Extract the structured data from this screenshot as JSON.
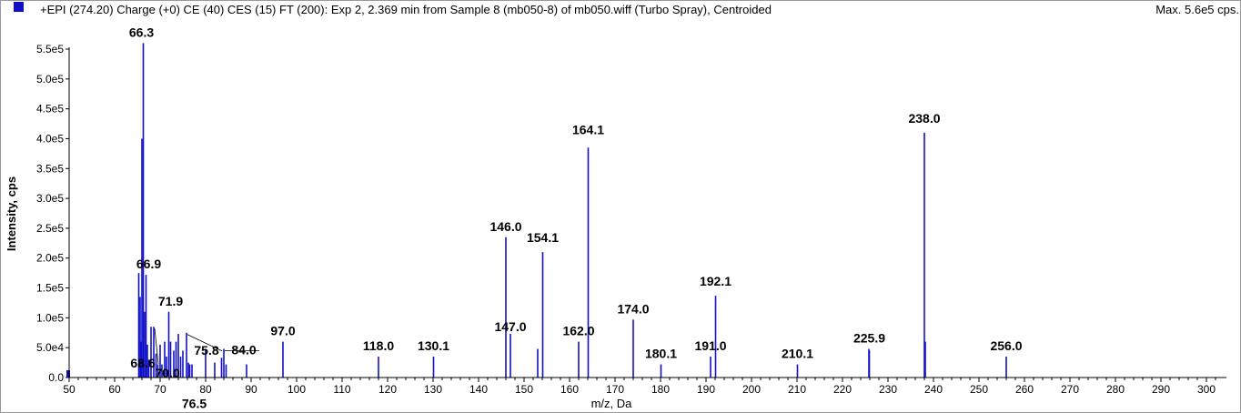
{
  "header": {
    "title": "+EPI (274.20) Charge (+0) CE (40) CES (15) FT (200): Exp 2, 2.369 min from Sample 8 (mb050-8) of mb050.wiff (Turbo Spray), Centroided",
    "max": "Max. 5.6e5 cps."
  },
  "colors": {
    "series": "#1010c8",
    "legend_swatch": "#1010c8"
  },
  "chart_data": {
    "type": "bar",
    "title": "+EPI (274.20) Charge (+0) CE (40) CES (15) FT (200): Exp 2, 2.369 min from Sample 8 (mb050-8) of mb050.wiff (Turbo Spray), Centroided",
    "xlabel": "m/z, Da",
    "ylabel": "Intensity, cps",
    "xlim": [
      50,
      304
    ],
    "ylim": [
      0,
      575000
    ],
    "xticks": [
      50,
      60,
      70,
      80,
      90,
      100,
      110,
      120,
      130,
      140,
      150,
      160,
      170,
      180,
      190,
      200,
      210,
      220,
      230,
      240,
      250,
      260,
      270,
      280,
      290,
      300
    ],
    "xtick_labels": [
      "50",
      "60",
      "70",
      "80",
      "90",
      "100",
      "110",
      "120",
      "130",
      "140",
      "150",
      "160",
      "170",
      "180",
      "190",
      "200",
      "210",
      "220",
      "230",
      "240",
      "250",
      "260",
      "270",
      "280",
      "290",
      "300"
    ],
    "yticks": [
      0,
      50000,
      100000,
      150000,
      200000,
      250000,
      300000,
      350000,
      400000,
      450000,
      500000,
      550000
    ],
    "ytick_labels": [
      "0.0",
      "5.0e4",
      "1.0e5",
      "1.5e5",
      "2.0e5",
      "2.5e5",
      "3.0e5",
      "3.5e5",
      "4.0e5",
      "4.5e5",
      "5.0e5",
      "5.5e5"
    ],
    "peaks": [
      {
        "mz": 50.0,
        "intensity": 12000
      },
      {
        "mz": 65.3,
        "intensity": 175000
      },
      {
        "mz": 65.6,
        "intensity": 135000
      },
      {
        "mz": 65.8,
        "intensity": 60000
      },
      {
        "mz": 66.0,
        "intensity": 400000
      },
      {
        "mz": 66.3,
        "intensity": 560000
      },
      {
        "mz": 66.6,
        "intensity": 110000
      },
      {
        "mz": 66.9,
        "intensity": 172000
      },
      {
        "mz": 67.2,
        "intensity": 55000
      },
      {
        "mz": 67.5,
        "intensity": 30000
      },
      {
        "mz": 68.0,
        "intensity": 85000
      },
      {
        "mz": 68.6,
        "intensity": 85000
      },
      {
        "mz": 69.1,
        "intensity": 40000
      },
      {
        "mz": 69.5,
        "intensity": 22000
      },
      {
        "mz": 70.0,
        "intensity": 55000
      },
      {
        "mz": 70.4,
        "intensity": 22000
      },
      {
        "mz": 71.0,
        "intensity": 60000
      },
      {
        "mz": 71.4,
        "intensity": 35000
      },
      {
        "mz": 71.9,
        "intensity": 110000
      },
      {
        "mz": 72.3,
        "intensity": 60000
      },
      {
        "mz": 73.0,
        "intensity": 45000
      },
      {
        "mz": 73.5,
        "intensity": 60000
      },
      {
        "mz": 74.0,
        "intensity": 73000
      },
      {
        "mz": 74.5,
        "intensity": 35000
      },
      {
        "mz": 75.0,
        "intensity": 45000
      },
      {
        "mz": 75.8,
        "intensity": 75000
      },
      {
        "mz": 76.2,
        "intensity": 25000
      },
      {
        "mz": 76.5,
        "intensity": 22000
      },
      {
        "mz": 77.0,
        "intensity": 22000
      },
      {
        "mz": 80.0,
        "intensity": 48000
      },
      {
        "mz": 82.0,
        "intensity": 25000
      },
      {
        "mz": 83.5,
        "intensity": 33000
      },
      {
        "mz": 84.0,
        "intensity": 48000
      },
      {
        "mz": 84.5,
        "intensity": 22000
      },
      {
        "mz": 89.0,
        "intensity": 22000
      },
      {
        "mz": 97.0,
        "intensity": 60000
      },
      {
        "mz": 118.0,
        "intensity": 35000
      },
      {
        "mz": 130.1,
        "intensity": 35000
      },
      {
        "mz": 146.0,
        "intensity": 235000
      },
      {
        "mz": 147.0,
        "intensity": 73000
      },
      {
        "mz": 153.0,
        "intensity": 48000
      },
      {
        "mz": 154.1,
        "intensity": 210000
      },
      {
        "mz": 162.0,
        "intensity": 60000
      },
      {
        "mz": 164.1,
        "intensity": 385000
      },
      {
        "mz": 174.0,
        "intensity": 97000
      },
      {
        "mz": 180.1,
        "intensity": 22000
      },
      {
        "mz": 191.0,
        "intensity": 35000
      },
      {
        "mz": 192.1,
        "intensity": 137000
      },
      {
        "mz": 210.1,
        "intensity": 22000
      },
      {
        "mz": 225.8,
        "intensity": 48000
      },
      {
        "mz": 225.9,
        "intensity": 45000
      },
      {
        "mz": 238.0,
        "intensity": 410000
      },
      {
        "mz": 238.2,
        "intensity": 60000
      },
      {
        "mz": 256.0,
        "intensity": 35000
      }
    ],
    "annotations": [
      {
        "text": "66.3",
        "mz": 66.3,
        "intensity": 560000
      },
      {
        "text": "66.9",
        "mz": 66.9,
        "intensity": 172000
      },
      {
        "text": "68.6",
        "mz": 68.6,
        "intensity": 85000,
        "leader": true
      },
      {
        "text": "70.0",
        "mz": 70.0,
        "intensity": 55000
      },
      {
        "text": "71.9",
        "mz": 71.9,
        "intensity": 110000
      },
      {
        "text": "75.8",
        "mz": 75.8,
        "intensity": 75000,
        "leader": true
      },
      {
        "text": "76.5",
        "mz": 76.5,
        "intensity": 22000
      },
      {
        "text": "84.0",
        "mz": 84.0,
        "intensity": 48000,
        "leader": true
      },
      {
        "text": "97.0",
        "mz": 97.0,
        "intensity": 60000
      },
      {
        "text": "118.0",
        "mz": 118.0,
        "intensity": 35000
      },
      {
        "text": "130.1",
        "mz": 130.1,
        "intensity": 35000
      },
      {
        "text": "146.0",
        "mz": 146.0,
        "intensity": 235000
      },
      {
        "text": "147.0",
        "mz": 147.0,
        "intensity": 73000
      },
      {
        "text": "154.1",
        "mz": 154.1,
        "intensity": 210000
      },
      {
        "text": "162.0",
        "mz": 162.0,
        "intensity": 60000
      },
      {
        "text": "164.1",
        "mz": 164.1,
        "intensity": 385000
      },
      {
        "text": "174.0",
        "mz": 174.0,
        "intensity": 97000
      },
      {
        "text": "180.1",
        "mz": 180.1,
        "intensity": 22000
      },
      {
        "text": "191.0",
        "mz": 191.0,
        "intensity": 35000
      },
      {
        "text": "192.1",
        "mz": 192.1,
        "intensity": 137000
      },
      {
        "text": "210.1",
        "mz": 210.1,
        "intensity": 22000
      },
      {
        "text": "225.9",
        "mz": 225.9,
        "intensity": 48000
      },
      {
        "text": "238.0",
        "mz": 238.0,
        "intensity": 410000
      },
      {
        "text": "256.0",
        "mz": 256.0,
        "intensity": 35000
      }
    ],
    "grid": false,
    "legend_position": "top-left"
  }
}
